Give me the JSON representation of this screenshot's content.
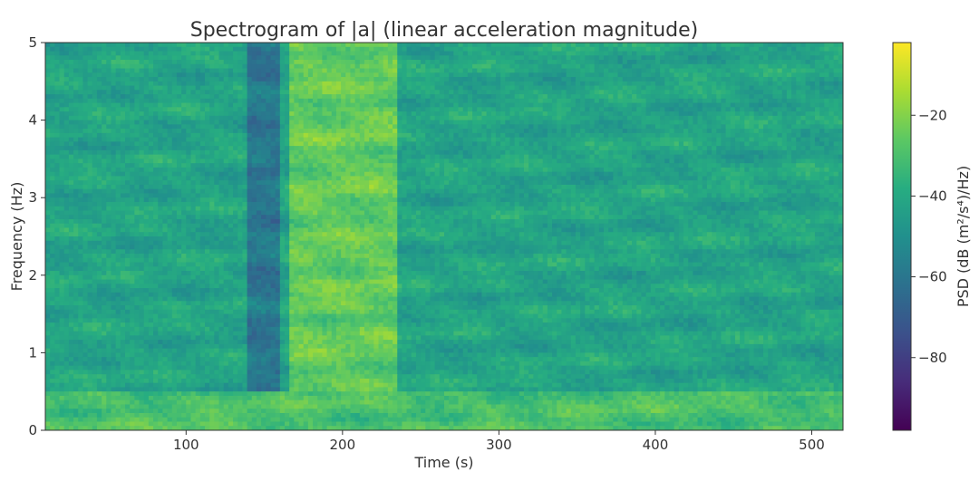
{
  "chart_data": {
    "type": "heatmap",
    "title": "Spectrogram of |a| (linear acceleration magnitude)",
    "xlabel": "Time (s)",
    "ylabel": "Frequency (Hz)",
    "xlim": [
      10,
      520
    ],
    "ylim": [
      0,
      5
    ],
    "x_ticks": [
      "100",
      "200",
      "300",
      "400",
      "500"
    ],
    "x_tick_values": [
      100,
      200,
      300,
      400,
      500
    ],
    "y_ticks": [
      "0",
      "1",
      "2",
      "3",
      "4",
      "5"
    ],
    "y_tick_values": [
      0,
      1,
      2,
      3,
      4,
      5
    ],
    "colormap": "viridis",
    "colorbar": {
      "label": "PSD (dB (m²/s⁴)/Hz)",
      "range": [
        -98,
        -2
      ],
      "ticks": [
        "−20",
        "−40",
        "−60",
        "−80"
      ],
      "tick_values": [
        -20,
        -40,
        -60,
        -80
      ]
    },
    "regions": [
      {
        "time_range": [
          140,
          160
        ],
        "description_level_db": -60
      },
      {
        "time_range": [
          165,
          235
        ],
        "description_level_db": -25
      },
      {
        "time_range": [
          10,
          520
        ],
        "freq_range": [
          0,
          0.5
        ],
        "description_level_db": -30
      }
    ],
    "background_level_db": -42
  },
  "colors": {
    "viridis": [
      "#440154",
      "#472c7a",
      "#3b518b",
      "#2c718e",
      "#21908d",
      "#27ad81",
      "#5cc863",
      "#aadc32",
      "#fde725"
    ]
  }
}
